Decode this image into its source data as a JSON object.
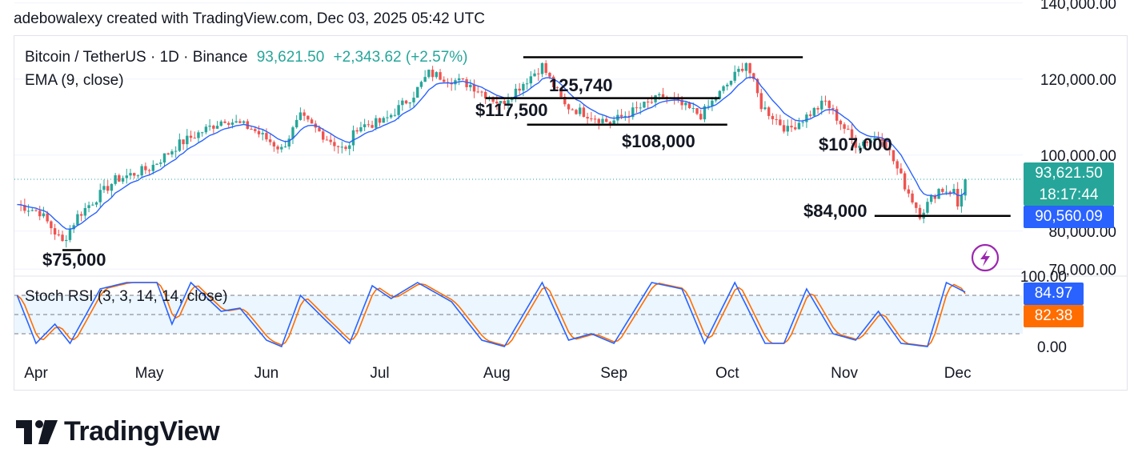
{
  "header": {
    "text": "adebowalexy created with TradingView.com, Dec 03, 2025 05:42 UTC"
  },
  "legend": {
    "symbol": "Bitcoin / TetherUS · 1D · Binance",
    "price": "93,621.50",
    "change": "+2,343.62 (+2.57%)",
    "ema": "EMA (9, close)",
    "rsi": "Stoch RSI (3, 3, 14, 14, close)"
  },
  "price_tags": {
    "last": "93,621.50",
    "countdown": "18:17:44",
    "ema": "90,560.09",
    "rsi_k": "84.97",
    "rsi_d": "82.38"
  },
  "annotations": [
    "125,740",
    "$117,500",
    "$108,000",
    "$107,000",
    "$84,000",
    "$75,000"
  ],
  "logo": {
    "text": "TradingView"
  },
  "colors": {
    "up": "#26a69a",
    "down": "#ef5350",
    "ema": "#2962ff",
    "rsi_k": "#2962ff",
    "rsi_d": "#ff6d00",
    "countdown_bg": "#26a69a"
  },
  "chart_data": {
    "type": "candlestick",
    "symbol": "BTCUSDT",
    "interval": "1D",
    "x_ticks": [
      "Apr",
      "May",
      "Jun",
      "Jul",
      "Aug",
      "Sep",
      "Oct",
      "Nov",
      "Dec"
    ],
    "y_ticks": [
      "140,000.00",
      "120,000.00",
      "100,000.00",
      "80,000.00",
      "70,000.00"
    ],
    "ylim": [
      70000,
      140000
    ],
    "close_anchors": [
      {
        "date": "Mar 27",
        "close": 87000
      },
      {
        "date": "Apr 2",
        "close": 85000
      },
      {
        "date": "Apr 8",
        "close": 77000
      },
      {
        "date": "Apr 12",
        "close": 84000
      },
      {
        "date": "Apr 22",
        "close": 93500
      },
      {
        "date": "May 1",
        "close": 96500
      },
      {
        "date": "May 9",
        "close": 103000
      },
      {
        "date": "May 21",
        "close": 109500
      },
      {
        "date": "May 28",
        "close": 107000
      },
      {
        "date": "Jun 5",
        "close": 101500
      },
      {
        "date": "Jun 10",
        "close": 110000
      },
      {
        "date": "Jun 17",
        "close": 104500
      },
      {
        "date": "Jun 22",
        "close": 101000
      },
      {
        "date": "Jun 25",
        "close": 107500
      },
      {
        "date": "Jul 2",
        "close": 108800
      },
      {
        "date": "Jul 10",
        "close": 116000
      },
      {
        "date": "Jul 14",
        "close": 121500
      },
      {
        "date": "Jul 25",
        "close": 118500
      },
      {
        "date": "Aug 2",
        "close": 113500
      },
      {
        "date": "Aug 13",
        "close": 123500
      },
      {
        "date": "Aug 19",
        "close": 113000
      },
      {
        "date": "Aug 31",
        "close": 108500
      },
      {
        "date": "Sep 14",
        "close": 115500
      },
      {
        "date": "Sep 24",
        "close": 110500
      },
      {
        "date": "Oct 1",
        "close": 118500
      },
      {
        "date": "Oct 6",
        "close": 124500
      },
      {
        "date": "Oct 10",
        "close": 113000
      },
      {
        "date": "Oct 17",
        "close": 106500
      },
      {
        "date": "Oct 27",
        "close": 114000
      },
      {
        "date": "Nov 4",
        "close": 103000
      },
      {
        "date": "Nov 11",
        "close": 105000
      },
      {
        "date": "Nov 17",
        "close": 92000
      },
      {
        "date": "Nov 21",
        "close": 84500
      },
      {
        "date": "Nov 26",
        "close": 91000
      },
      {
        "date": "Nov 30",
        "close": 90500
      },
      {
        "date": "Dec 1",
        "close": 86500
      },
      {
        "date": "Dec 3",
        "close": 93621.5
      }
    ],
    "levels": [
      125740,
      117500,
      108000,
      107000,
      84000,
      75000
    ],
    "stoch_rsi": {
      "k": 84.97,
      "d": 82.38,
      "ylim": [
        0,
        100
      ],
      "y_ticks": [
        "100.00",
        "0.00"
      ],
      "k_anchors": [
        {
          "date": "Mar 27",
          "v": 80
        },
        {
          "date": "Apr 1",
          "v": 5
        },
        {
          "date": "Apr 6",
          "v": 35
        },
        {
          "date": "Apr 10",
          "v": 5
        },
        {
          "date": "Apr 18",
          "v": 90
        },
        {
          "date": "Apr 25",
          "v": 100
        },
        {
          "date": "May 3",
          "v": 100
        },
        {
          "date": "May 7",
          "v": 35
        },
        {
          "date": "May 12",
          "v": 100
        },
        {
          "date": "May 20",
          "v": 55
        },
        {
          "date": "May 25",
          "v": 60
        },
        {
          "date": "Jun 1",
          "v": 10
        },
        {
          "date": "Jun 5",
          "v": 0
        },
        {
          "date": "Jun 10",
          "v": 80
        },
        {
          "date": "Jun 16",
          "v": 45
        },
        {
          "date": "Jun 23",
          "v": 5
        },
        {
          "date": "Jun 29",
          "v": 95
        },
        {
          "date": "Jul 4",
          "v": 75
        },
        {
          "date": "Jul 11",
          "v": 100
        },
        {
          "date": "Jul 20",
          "v": 70
        },
        {
          "date": "Jul 28",
          "v": 10
        },
        {
          "date": "Aug 3",
          "v": 0
        },
        {
          "date": "Aug 13",
          "v": 100
        },
        {
          "date": "Aug 20",
          "v": 10
        },
        {
          "date": "Aug 26",
          "v": 20
        },
        {
          "date": "Sep 1",
          "v": 5
        },
        {
          "date": "Sep 11",
          "v": 100
        },
        {
          "date": "Sep 19",
          "v": 90
        },
        {
          "date": "Sep 25",
          "v": 5
        },
        {
          "date": "Oct 3",
          "v": 100
        },
        {
          "date": "Oct 11",
          "v": 5
        },
        {
          "date": "Oct 16",
          "v": 5
        },
        {
          "date": "Oct 22",
          "v": 90
        },
        {
          "date": "Oct 29",
          "v": 20
        },
        {
          "date": "Nov 4",
          "v": 10
        },
        {
          "date": "Nov 10",
          "v": 55
        },
        {
          "date": "Nov 16",
          "v": 5
        },
        {
          "date": "Nov 23",
          "v": 0
        },
        {
          "date": "Nov 28",
          "v": 100
        },
        {
          "date": "Dec 3",
          "v": 84.97
        }
      ]
    }
  }
}
